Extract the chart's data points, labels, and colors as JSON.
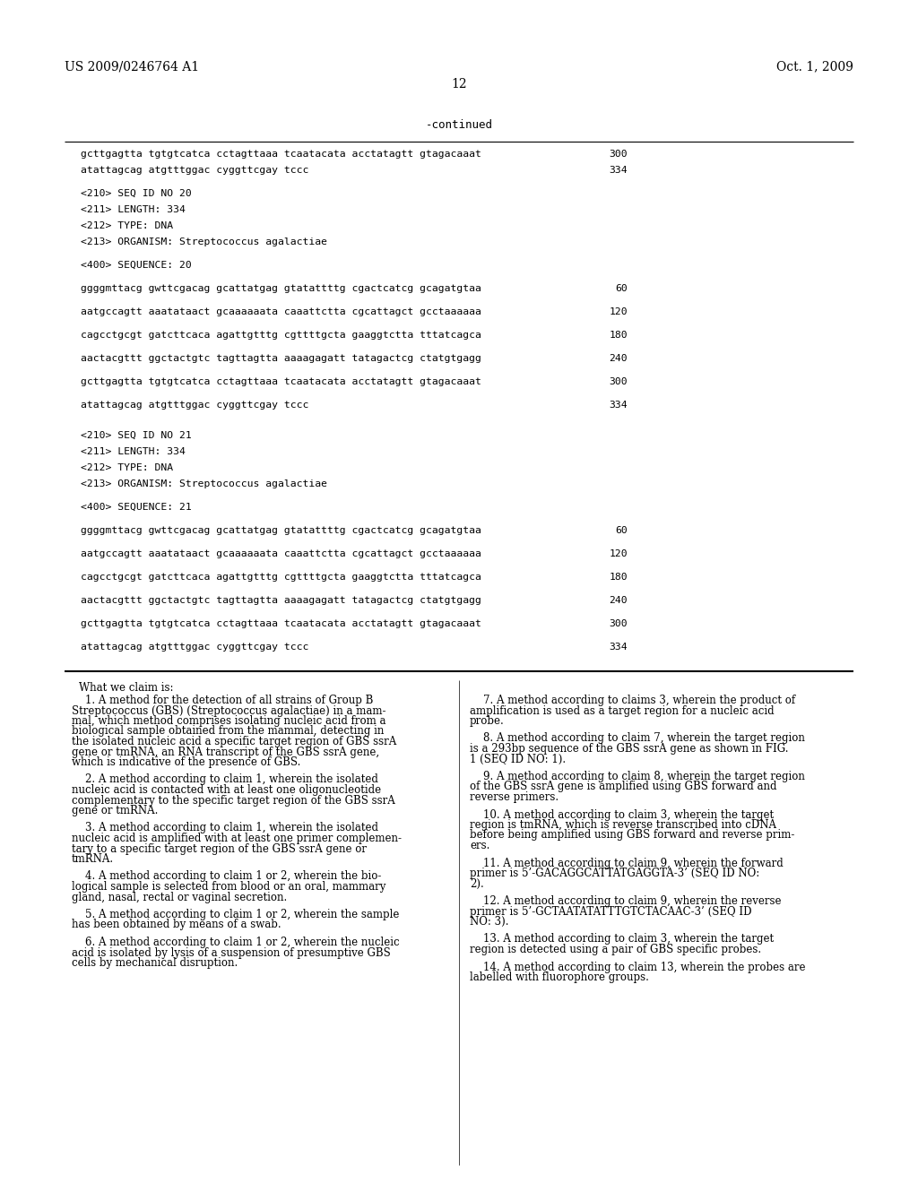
{
  "background_color": "#ffffff",
  "header_left": "US 2009/0246764 A1",
  "header_right": "Oct. 1, 2009",
  "page_number": "12",
  "continued_label": "-continued",
  "sequence_section": [
    {
      "text": "gcttgagtta tgtgtcatca cctagttaaa tcaatacata acctatagtt gtagacaaat",
      "num": "300"
    },
    {
      "text": "atattagcag atgtttggac cyggttcgay tccc",
      "num": "334"
    },
    {
      "text": "",
      "num": ""
    },
    {
      "text": "<210> SEQ ID NO 20",
      "num": ""
    },
    {
      "text": "<211> LENGTH: 334",
      "num": ""
    },
    {
      "text": "<212> TYPE: DNA",
      "num": ""
    },
    {
      "text": "<213> ORGANISM: Streptococcus agalactiae",
      "num": ""
    },
    {
      "text": "",
      "num": ""
    },
    {
      "text": "<400> SEQUENCE: 20",
      "num": ""
    },
    {
      "text": "",
      "num": ""
    },
    {
      "text": "ggggmttacg gwttcgacag gcattatgag gtatattttg cgactcatcg gcagatgtaa",
      "num": "60"
    },
    {
      "text": "",
      "num": ""
    },
    {
      "text": "aatgccagtt aaatataact gcaaaaaata caaattctta cgcattagct gcctaaaaaa",
      "num": "120"
    },
    {
      "text": "",
      "num": ""
    },
    {
      "text": "cagcctgcgt gatcttcaca agattgtttg cgttttgcta gaaggtctta tttatcagca",
      "num": "180"
    },
    {
      "text": "",
      "num": ""
    },
    {
      "text": "aactacgttt ggctactgtc tagttagtta aaaagagatt tatagactcg ctatgtgagg",
      "num": "240"
    },
    {
      "text": "",
      "num": ""
    },
    {
      "text": "gcttgagtta tgtgtcatca cctagttaaa tcaatacata acctatagtt gtagacaaat",
      "num": "300"
    },
    {
      "text": "",
      "num": ""
    },
    {
      "text": "atattagcag atgtttggac cyggttcgay tccc",
      "num": "334"
    },
    {
      "text": "",
      "num": ""
    },
    {
      "text": "",
      "num": ""
    },
    {
      "text": "<210> SEQ ID NO 21",
      "num": ""
    },
    {
      "text": "<211> LENGTH: 334",
      "num": ""
    },
    {
      "text": "<212> TYPE: DNA",
      "num": ""
    },
    {
      "text": "<213> ORGANISM: Streptococcus agalactiae",
      "num": ""
    },
    {
      "text": "",
      "num": ""
    },
    {
      "text": "<400> SEQUENCE: 21",
      "num": ""
    },
    {
      "text": "",
      "num": ""
    },
    {
      "text": "ggggmttacg gwttcgacag gcattatgag gtatattttg cgactcatcg gcagatgtaa",
      "num": "60"
    },
    {
      "text": "",
      "num": ""
    },
    {
      "text": "aatgccagtt aaatataact gcaaaaaata caaattctta cgcattagct gcctaaaaaa",
      "num": "120"
    },
    {
      "text": "",
      "num": ""
    },
    {
      "text": "cagcctgcgt gatcttcaca agattgtttg cgttttgcta gaaggtctta tttatcagca",
      "num": "180"
    },
    {
      "text": "",
      "num": ""
    },
    {
      "text": "aactacgttt ggctactgtc tagttagtta aaaagagatt tatagactcg ctatgtgagg",
      "num": "240"
    },
    {
      "text": "",
      "num": ""
    },
    {
      "text": "gcttgagtta tgtgtcatca cctagttaaa tcaatacata acctatagtt gtagacaaat",
      "num": "300"
    },
    {
      "text": "",
      "num": ""
    },
    {
      "text": "atattagcag atgtttggac cyggttcgay tccc",
      "num": "334"
    }
  ],
  "claims_title": "What we claim is:",
  "col1_claims": [
    "    1. A method for the detection of all strains of Group B\nStreptococcus (GBS) (Streptococcus agalactiae) in a mam-\nmal, which method comprises isolating nucleic acid from a\nbiological sample obtained from the mammal, detecting in\nthe isolated nucleic acid a specific target region of GBS ssrA\ngene or tmRNA, an RNA transcript of the GBS ssrA gene,\nwhich is indicative of the presence of GBS.",
    "    2. A method according to claim 1, wherein the isolated\nnucleic acid is contacted with at least one oligonucleotide\ncomplementary to the specific target region of the GBS ssrA\ngene or tmRNA.",
    "    3. A method according to claim 1, wherein the isolated\nnucleic acid is amplified with at least one primer complemen-\ntary to a specific target region of the GBS ssrA gene or\ntmRNA.",
    "    4. A method according to claim 1 or 2, wherein the bio-\nlogical sample is selected from blood or an oral, mammary\ngland, nasal, rectal or vaginal secretion.",
    "    5. A method according to claim 1 or 2, wherein the sample\nhas been obtained by means of a swab.",
    "    6. A method according to claim 1 or 2, wherein the nucleic\nacid is isolated by lysis of a suspension of presumptive GBS\ncells by mechanical disruption."
  ],
  "col2_claims": [
    "    7. A method according to claims 3, wherein the product of\namplification is used as a target region for a nucleic acid\nprobe.",
    "    8. A method according to claim 7, wherein the target region\nis a 293bp sequence of the GBS ssrA gene as shown in FIG.\n1 (SEQ ID NO: 1).",
    "    9. A method according to claim 8, wherein the target region\nof the GBS ssrA gene is amplified using GBS forward and\nreverse primers.",
    "    10. A method according to claim 3, wherein the target\nregion is tmRNA, which is reverse transcribed into cDNA\nbefore being amplified using GBS forward and reverse prim-\ners.",
    "    11. A method according to claim 9, wherein the forward\nprimer is 5’-GACAGGCATTATGAGGTA-3’ (SEQ ID NO:\n2).",
    "    12. A method according to claim 9, wherein the reverse\nprimer is 5’-GCTAATATATTTGTCTACAAC-3’ (SEQ ID\nNO: 3).",
    "    13. A method according to claim 3, wherein the target\nregion is detected using a pair of GBS specific probes.",
    "    14. A method according to claim 13, wherein the probes are\nlabelled with fluorophore groups."
  ]
}
